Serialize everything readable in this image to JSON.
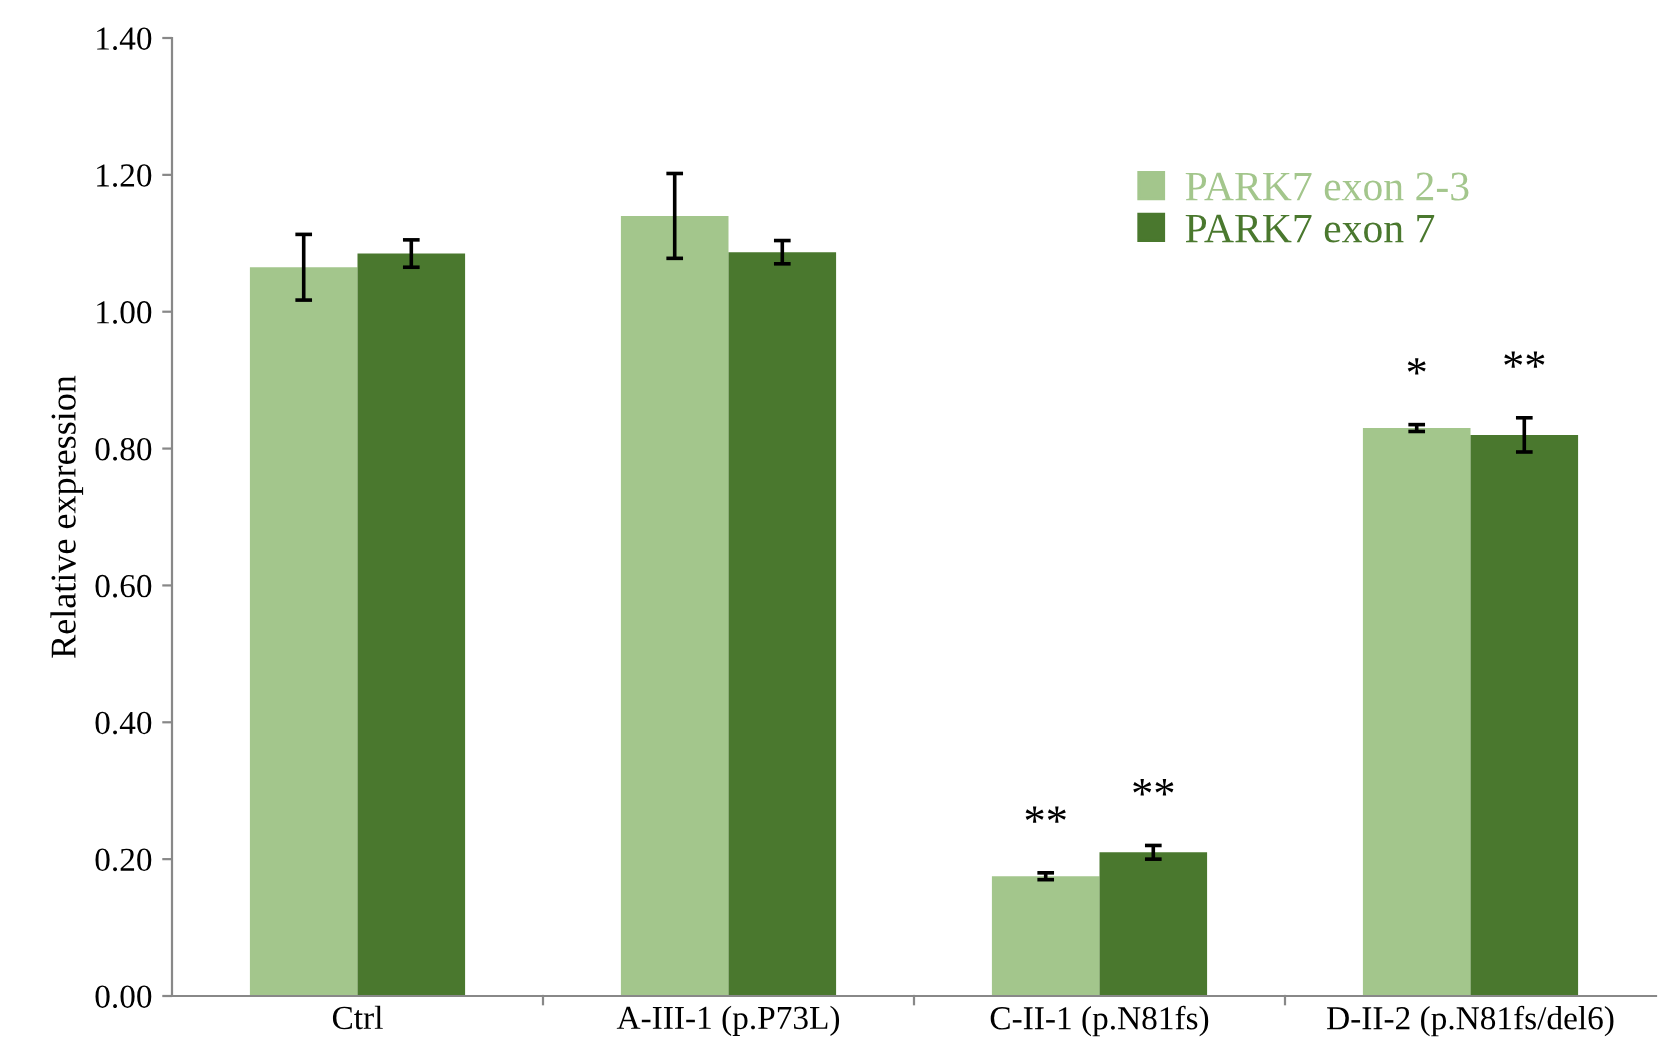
{
  "chart_data": {
    "type": "bar",
    "ylabel": "Relative expression",
    "categories": [
      "Ctrl",
      "A-III-1 (p.P73L)",
      "C-II-1 (p.N81fs)",
      "D-II-2 (p.N81fs/del6)"
    ],
    "series": [
      {
        "name": "PARK7 exon 2-3",
        "color": "#a3c68c",
        "values": [
          1.065,
          1.14,
          0.175,
          0.83
        ],
        "errors": [
          0.048,
          0.062,
          0.005,
          0.005
        ],
        "value_labels": [
          null,
          null,
          "**",
          "*"
        ]
      },
      {
        "name": "PARK7 exon 7",
        "color": "#4a782e",
        "values": [
          1.085,
          1.087,
          0.21,
          0.82
        ],
        "errors": [
          0.02,
          0.017,
          0.01,
          0.025
        ],
        "value_labels": [
          null,
          null,
          "**",
          "**"
        ]
      }
    ],
    "ylim": [
      0,
      1.4
    ],
    "yticks": [
      {
        "value": 0,
        "label": "0.00"
      },
      {
        "value": 0.2,
        "label": "0.20"
      },
      {
        "value": 0.4,
        "label": "0.40"
      },
      {
        "value": 0.6,
        "label": "0.60"
      },
      {
        "value": 0.8,
        "label": "0.80"
      },
      {
        "value": 1.0,
        "label": "1.00"
      },
      {
        "value": 1.2,
        "label": "1.20"
      },
      {
        "value": 1.4,
        "label": "1.40"
      }
    ],
    "grid": false,
    "legend": "top right"
  }
}
